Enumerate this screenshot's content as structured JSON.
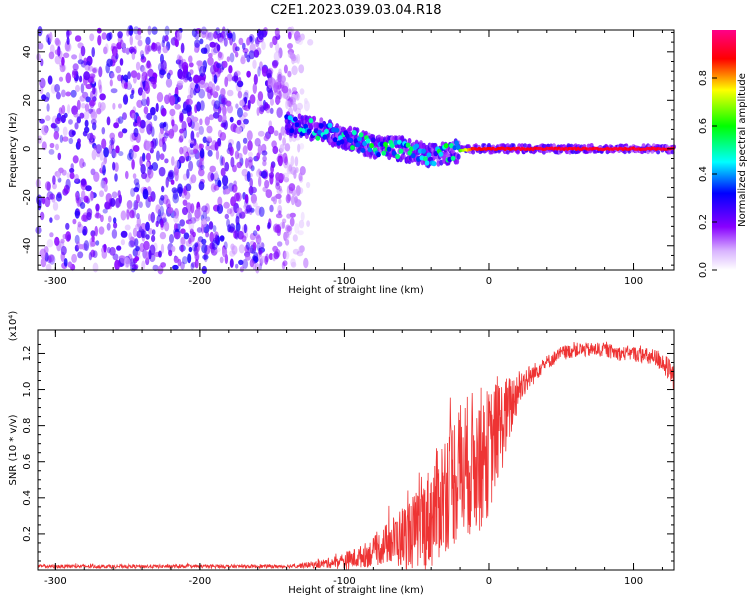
{
  "figure": {
    "title": "C2E1.2023.039.03.04.R18"
  },
  "chart_data": [
    {
      "type": "heatmap",
      "xlabel": "Height of straight line (km)",
      "ylabel": "Frequency (Hz)",
      "xlim": [
        -312,
        128
      ],
      "ylim": [
        -50,
        49
      ],
      "xticks": [
        -300,
        -200,
        -100,
        0,
        100
      ],
      "yticks": [
        -40,
        -20,
        0,
        20,
        40
      ],
      "grid": false,
      "colorbar": {
        "label": "Normalized spectral amplitude",
        "range": [
          0.0,
          1.0
        ],
        "ticks": [
          "0.0",
          "0.2",
          "0.4",
          "0.6",
          "0.8"
        ],
        "colormap": [
          "#ffffff",
          "#8800ff",
          "#0000ff",
          "#00ffff",
          "#00ff00",
          "#ffff00",
          "#ff0000",
          "#ff0088"
        ]
      },
      "features": {
        "noise_band": {
          "x_range": [
            -312,
            -130
          ],
          "y_range": [
            -50,
            49
          ],
          "amplitude": 0.15
        },
        "streak_points": [
          {
            "x": -140,
            "y": 10,
            "amp": 0.35
          },
          {
            "x": -120,
            "y": 8,
            "amp": 0.45
          },
          {
            "x": -100,
            "y": 5,
            "amp": 0.45
          },
          {
            "x": -80,
            "y": 1,
            "amp": 0.5
          },
          {
            "x": -60,
            "y": 0,
            "amp": 0.5
          },
          {
            "x": -40,
            "y": -3,
            "amp": 0.45
          },
          {
            "x": -25,
            "y": -1,
            "amp": 0.5
          },
          {
            "x": -10,
            "y": 0,
            "amp": 0.9
          },
          {
            "x": 0,
            "y": 0,
            "amp": 0.9
          },
          {
            "x": 50,
            "y": 0,
            "amp": 0.92
          },
          {
            "x": 128,
            "y": 0,
            "amp": 0.92
          }
        ]
      }
    },
    {
      "type": "line",
      "xlabel": "Height of straight line (km)",
      "ylabel": "SNR (10 * v/v)",
      "y_scale_note": "(x10⁴)",
      "xlim": [
        -312,
        128
      ],
      "ylim": [
        0.0,
        1.33
      ],
      "xticks": [
        -300,
        -200,
        -100,
        0,
        100
      ],
      "yticks": [
        0.2,
        0.4,
        0.6,
        0.8,
        1.0,
        1.2
      ],
      "grid": false,
      "line_color": "#ee3333",
      "series": [
        {
          "x": [
            -312,
            -280,
            -240,
            -200,
            -160,
            -140,
            -120,
            -110,
            -100,
            -90,
            -80,
            -70,
            -60,
            -50,
            -40,
            -30,
            -20,
            -10,
            -5,
            0,
            5,
            10,
            15,
            20,
            25,
            30,
            35,
            40,
            50,
            60,
            70,
            80,
            90,
            100,
            110,
            120,
            128
          ],
          "values": [
            0.02,
            0.02,
            0.02,
            0.02,
            0.02,
            0.02,
            0.03,
            0.04,
            0.05,
            0.07,
            0.1,
            0.15,
            0.18,
            0.22,
            0.3,
            0.45,
            0.55,
            0.6,
            0.62,
            0.65,
            0.75,
            0.82,
            0.9,
            1.0,
            1.05,
            1.08,
            1.12,
            1.15,
            1.2,
            1.22,
            1.22,
            1.22,
            1.2,
            1.2,
            1.18,
            1.16,
            1.05
          ],
          "noise": [
            0.01,
            0.01,
            0.01,
            0.01,
            0.01,
            0.01,
            0.02,
            0.03,
            0.05,
            0.06,
            0.08,
            0.12,
            0.18,
            0.22,
            0.3,
            0.35,
            0.4,
            0.4,
            0.4,
            0.35,
            0.3,
            0.25,
            0.18,
            0.12,
            0.08,
            0.06,
            0.05,
            0.04,
            0.04,
            0.04,
            0.04,
            0.04,
            0.04,
            0.04,
            0.05,
            0.06,
            0.08
          ]
        }
      ]
    }
  ]
}
